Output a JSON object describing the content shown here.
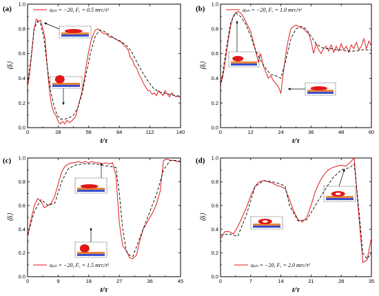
{
  "panels": [
    {
      "label": "(a)",
      "legend_text": "aₚₕ = −20,  Fₓ = 0.5 mrᴄ/τ²",
      "xlabel": "t/τ",
      "ylabel": "⟨δ⟩",
      "xticks": [
        "0",
        "28",
        "56",
        "84",
        "112",
        "140"
      ],
      "yticks": [
        "0.0",
        "0.2",
        "0.4",
        "0.6",
        "0.8",
        "1.0"
      ]
    },
    {
      "label": "(b)",
      "legend_text": "aₚₕ = −20,  Fₓ = 1.0 mrᴄ/τ²",
      "xlabel": "t/τ",
      "ylabel": "⟨δ⟩",
      "xticks": [
        "0",
        "12",
        "24",
        "36",
        "48",
        "60"
      ],
      "yticks": [
        "0.0",
        "0.2",
        "0.4",
        "0.6",
        "0.8",
        "1.0"
      ]
    },
    {
      "label": "(c)",
      "legend_text": "aₚₕ = −20,  Fₓ = 1.5 mrᴄ/τ²",
      "xlabel": "t/τ",
      "ylabel": "⟨δ⟩",
      "xticks": [
        "0",
        "9",
        "18",
        "27",
        "36",
        "45"
      ],
      "yticks": [
        "0.0",
        "0.2",
        "0.4",
        "0.6",
        "0.8",
        "1.0"
      ]
    },
    {
      "label": "(d)",
      "legend_text": "aₚₕ = −20,  Fₓ = 2.0 mrᴄ/τ²",
      "xlabel": "t/τ",
      "ylabel": "⟨δ⟩",
      "xticks": [
        "0",
        "7",
        "14",
        "21",
        "28",
        "35"
      ],
      "yticks": [
        "0.0",
        "0.2",
        "0.4",
        "0.6",
        "0.8",
        "1.0"
      ]
    }
  ],
  "colors": {
    "simulation": "#e01818",
    "fit": "#000000",
    "droplet": "#e01818",
    "substrate_blue": "#3a4fd0",
    "substrate_orange": "#e8883a"
  },
  "chart_data": [
    {
      "type": "line",
      "panel": "(a)",
      "xlim": [
        0,
        140
      ],
      "ylim": [
        0,
        1.0
      ],
      "xlabel": "t/τ",
      "ylabel": "⟨δ⟩",
      "legend": "top-left",
      "series": [
        {
          "name": "aₚₕ = −20,  Fₓ = 0.5 mrᴄ/τ²",
          "style": "solid-red",
          "x": [
            0,
            2,
            4,
            6,
            8,
            10,
            12,
            14,
            16,
            18,
            20,
            22,
            24,
            26,
            28,
            30,
            32,
            34,
            36,
            38,
            40,
            42,
            44,
            46,
            48,
            50,
            52,
            54,
            56,
            58,
            60,
            62,
            64,
            66,
            68,
            70,
            72,
            74,
            76,
            78,
            80,
            82,
            84,
            86,
            88,
            90,
            92,
            94,
            96,
            98,
            100,
            102,
            104,
            106,
            108,
            110,
            112,
            114,
            116,
            118,
            120,
            122,
            124,
            126,
            128,
            130,
            132,
            134,
            136,
            138,
            140
          ],
          "y": [
            0.33,
            0.45,
            0.62,
            0.8,
            0.88,
            0.86,
            0.87,
            0.8,
            0.72,
            0.5,
            0.3,
            0.18,
            0.12,
            0.1,
            0.05,
            0.03,
            0.05,
            0.03,
            0.06,
            0.04,
            0.05,
            0.07,
            0.09,
            0.16,
            0.23,
            0.3,
            0.4,
            0.52,
            0.62,
            0.7,
            0.75,
            0.79,
            0.8,
            0.79,
            0.77,
            0.76,
            0.76,
            0.74,
            0.73,
            0.73,
            0.72,
            0.71,
            0.7,
            0.69,
            0.67,
            0.65,
            0.63,
            0.57,
            0.55,
            0.5,
            0.48,
            0.43,
            0.4,
            0.36,
            0.33,
            0.3,
            0.3,
            0.27,
            0.28,
            0.26,
            0.3,
            0.28,
            0.26,
            0.3,
            0.27,
            0.25,
            0.28,
            0.26,
            0.25,
            0.26,
            0.24
          ]
        },
        {
          "name": "",
          "style": "dashed-black",
          "x": [
            0,
            3,
            6,
            9,
            12,
            15,
            18,
            21,
            24,
            27,
            30,
            34,
            38,
            42,
            46,
            50,
            54,
            58,
            62,
            66,
            70,
            75,
            80,
            85,
            90,
            95,
            100,
            105,
            110,
            115,
            120,
            125,
            130,
            135,
            140
          ],
          "y": [
            0.35,
            0.55,
            0.8,
            0.86,
            0.84,
            0.72,
            0.5,
            0.3,
            0.18,
            0.1,
            0.07,
            0.07,
            0.08,
            0.1,
            0.16,
            0.28,
            0.45,
            0.62,
            0.74,
            0.79,
            0.78,
            0.75,
            0.72,
            0.7,
            0.67,
            0.62,
            0.53,
            0.45,
            0.38,
            0.32,
            0.29,
            0.28,
            0.27,
            0.26,
            0.25
          ]
        }
      ]
    },
    {
      "type": "line",
      "panel": "(b)",
      "xlim": [
        0,
        60
      ],
      "ylim": [
        0,
        1.0
      ],
      "xlabel": "t/τ",
      "ylabel": "⟨δ⟩",
      "legend": "top-left",
      "series": [
        {
          "name": "aₚₕ = −20,  Fₓ = 1.0 mrᴄ/τ²",
          "style": "solid-red",
          "x": [
            0,
            1,
            2,
            3,
            4,
            5,
            6,
            7,
            8,
            9,
            10,
            11,
            12,
            13,
            14,
            15,
            16,
            17,
            18,
            19,
            20,
            21,
            22,
            23,
            24,
            25,
            26,
            27,
            28,
            29,
            30,
            31,
            32,
            33,
            34,
            35,
            36,
            37,
            38,
            39,
            40,
            41,
            42,
            43,
            44,
            45,
            46,
            47,
            48,
            49,
            50,
            51,
            52,
            53,
            54,
            55,
            56,
            57,
            58,
            59,
            60
          ],
          "y": [
            0.35,
            0.42,
            0.55,
            0.7,
            0.82,
            0.9,
            0.93,
            0.94,
            0.93,
            0.9,
            0.86,
            0.82,
            0.78,
            0.7,
            0.62,
            0.53,
            0.6,
            0.5,
            0.45,
            0.4,
            0.42,
            0.38,
            0.36,
            0.33,
            0.28,
            0.45,
            0.6,
            0.72,
            0.8,
            0.82,
            0.83,
            0.82,
            0.81,
            0.8,
            0.78,
            0.76,
            0.7,
            0.6,
            0.68,
            0.63,
            0.6,
            0.64,
            0.66,
            0.62,
            0.67,
            0.61,
            0.66,
            0.62,
            0.68,
            0.63,
            0.66,
            0.61,
            0.67,
            0.64,
            0.69,
            0.63,
            0.66,
            0.72,
            0.64,
            0.7,
            0.66
          ]
        },
        {
          "name": "",
          "style": "dashed-black",
          "x": [
            0,
            2,
            4,
            6,
            8,
            10,
            12,
            14,
            16,
            18,
            20,
            22,
            24,
            26,
            28,
            30,
            32,
            34,
            36,
            38,
            40,
            42,
            44,
            46,
            48,
            50,
            52,
            54,
            56,
            58,
            60
          ],
          "y": [
            0.33,
            0.6,
            0.85,
            0.93,
            0.9,
            0.84,
            0.74,
            0.62,
            0.54,
            0.48,
            0.43,
            0.42,
            0.4,
            0.55,
            0.72,
            0.8,
            0.82,
            0.8,
            0.74,
            0.68,
            0.65,
            0.64,
            0.64,
            0.63,
            0.63,
            0.62,
            0.62,
            0.62,
            0.63,
            0.63,
            0.63
          ]
        }
      ]
    },
    {
      "type": "line",
      "panel": "(c)",
      "xlim": [
        0,
        45
      ],
      "ylim": [
        0,
        1.0
      ],
      "xlabel": "t/τ",
      "ylabel": "⟨δ⟩",
      "legend": "bottom-left",
      "series": [
        {
          "name": "aₚₕ = −20,  Fₓ = 1.5 mrᴄ/τ²",
          "style": "solid-red",
          "x": [
            0,
            1,
            2,
            3,
            4,
            5,
            6,
            7,
            8,
            9,
            10,
            11,
            12,
            13,
            14,
            15,
            16,
            17,
            18,
            19,
            20,
            21,
            22,
            23,
            24,
            25,
            26,
            27,
            28,
            29,
            30,
            31,
            32,
            33,
            34,
            35,
            36,
            37,
            38,
            39,
            40,
            41,
            42,
            43,
            44,
            45
          ],
          "y": [
            0.33,
            0.48,
            0.6,
            0.66,
            0.63,
            0.58,
            0.6,
            0.62,
            0.68,
            0.78,
            0.88,
            0.93,
            0.95,
            0.96,
            0.96,
            0.97,
            0.96,
            0.97,
            0.96,
            0.97,
            0.96,
            0.96,
            0.95,
            0.96,
            0.95,
            0.96,
            0.85,
            0.45,
            0.26,
            0.22,
            0.16,
            0.15,
            0.18,
            0.3,
            0.4,
            0.45,
            0.5,
            0.55,
            0.62,
            0.72,
            0.98,
            0.99,
            0.98,
            0.98,
            0.97,
            0.97
          ]
        },
        {
          "name": "",
          "style": "dashed-black",
          "x": [
            0,
            2,
            4,
            6,
            8,
            10,
            12,
            14,
            16,
            18,
            20,
            22,
            24,
            26,
            27,
            28,
            29,
            30,
            31,
            32,
            34,
            36,
            38,
            40,
            42,
            44,
            45
          ],
          "y": [
            0.35,
            0.55,
            0.65,
            0.6,
            0.62,
            0.8,
            0.91,
            0.94,
            0.95,
            0.95,
            0.95,
            0.94,
            0.93,
            0.92,
            0.7,
            0.4,
            0.22,
            0.18,
            0.17,
            0.25,
            0.4,
            0.55,
            0.7,
            0.9,
            0.98,
            0.98,
            0.97
          ]
        }
      ]
    },
    {
      "type": "line",
      "panel": "(d)",
      "xlim": [
        0,
        35
      ],
      "ylim": [
        0,
        1.0
      ],
      "xlabel": "t/τ",
      "ylabel": "⟨δ⟩",
      "legend": "bottom-right",
      "series": [
        {
          "name": "aₚₕ = −20,  Fₓ = 2.0 mrᴄ/τ²",
          "style": "solid-red",
          "x": [
            0,
            1,
            2,
            3,
            4,
            5,
            6,
            7,
            8,
            9,
            10,
            11,
            12,
            13,
            14,
            15,
            16,
            17,
            18,
            19,
            20,
            21,
            22,
            23,
            24,
            25,
            26,
            27,
            28,
            29,
            30,
            31,
            32,
            33,
            34,
            35
          ],
          "y": [
            0.32,
            0.38,
            0.38,
            0.36,
            0.42,
            0.5,
            0.58,
            0.68,
            0.76,
            0.8,
            0.81,
            0.8,
            0.79,
            0.77,
            0.76,
            0.74,
            0.65,
            0.55,
            0.48,
            0.46,
            0.5,
            0.6,
            0.72,
            0.8,
            0.86,
            0.9,
            0.92,
            0.93,
            0.94,
            0.93,
            0.96,
            1.0,
            0.55,
            0.12,
            0.14,
            0.33
          ]
        },
        {
          "name": "",
          "style": "dashed-black",
          "x": [
            0,
            2,
            4,
            6,
            8,
            10,
            12,
            14,
            15,
            16,
            18,
            20,
            22,
            24,
            26,
            28,
            30,
            31,
            32,
            33,
            34,
            35
          ],
          "y": [
            0.35,
            0.36,
            0.34,
            0.52,
            0.76,
            0.81,
            0.8,
            0.78,
            0.76,
            0.6,
            0.47,
            0.48,
            0.6,
            0.72,
            0.83,
            0.9,
            0.92,
            0.95,
            0.6,
            0.2,
            0.15,
            0.2
          ]
        }
      ]
    }
  ]
}
